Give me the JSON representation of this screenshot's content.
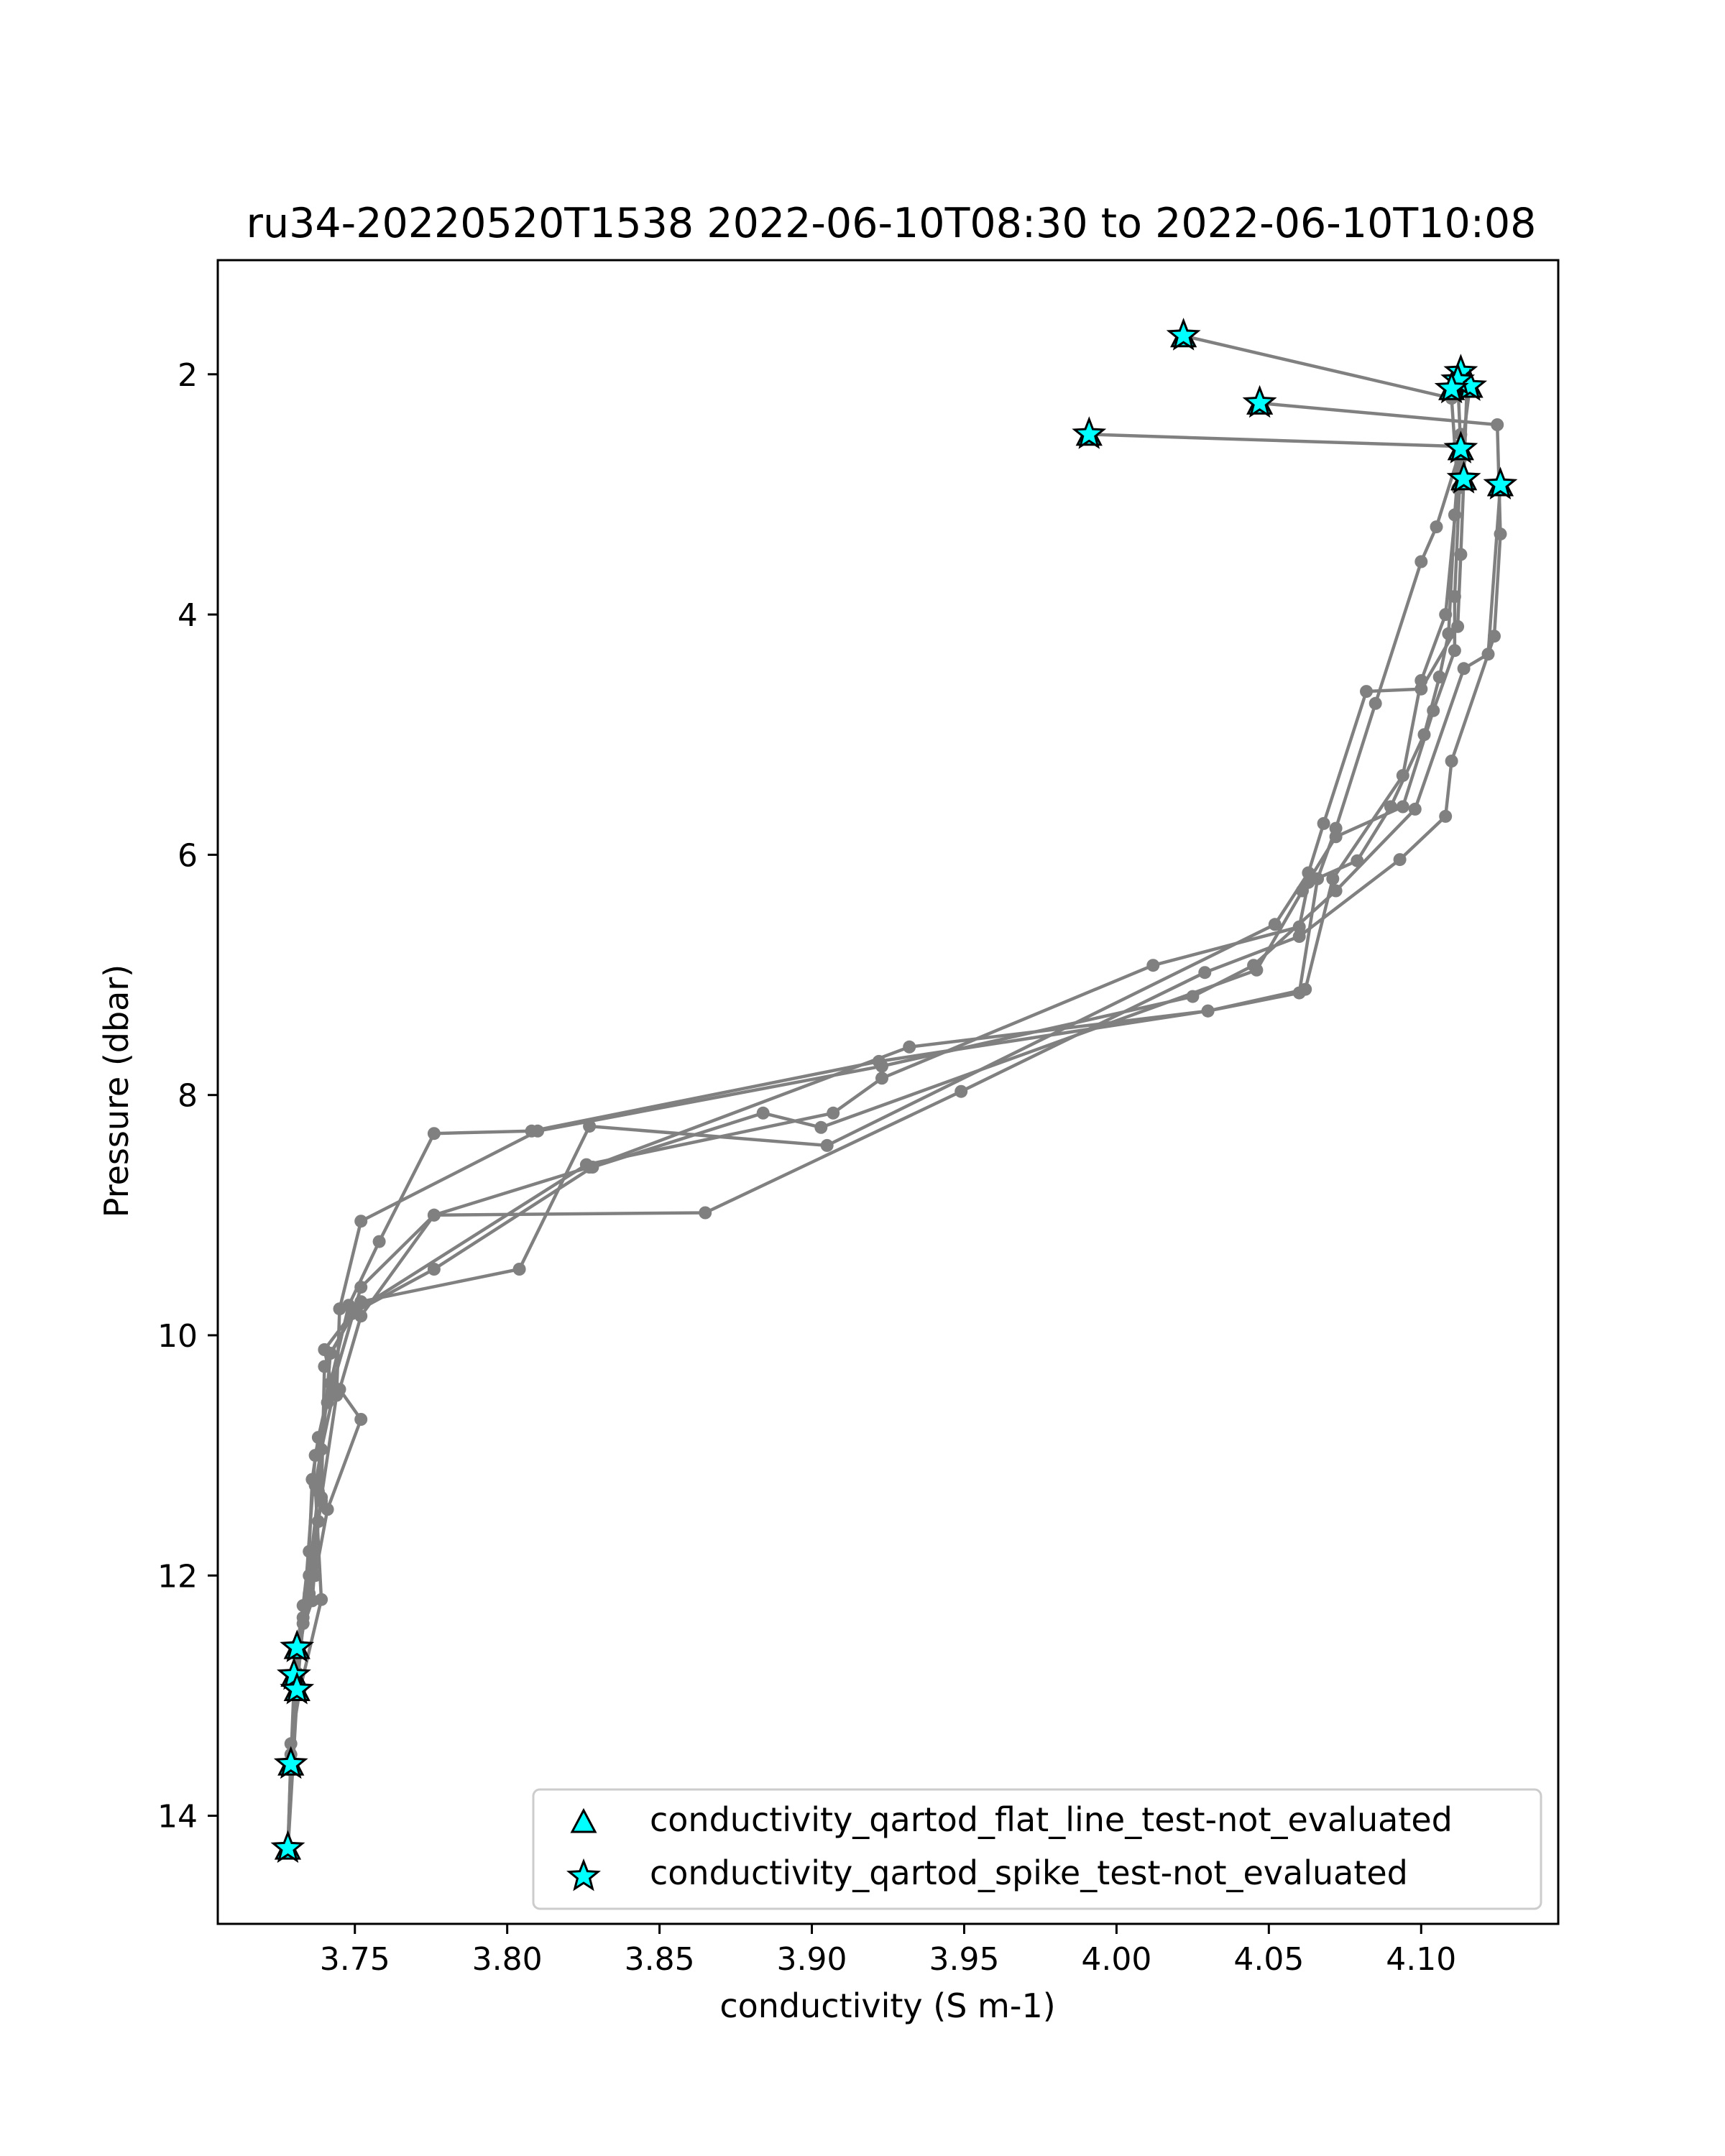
{
  "chart_data": {
    "type": "line",
    "title": "ru34-20220520T1538 2022-06-10T08:30 to 2022-06-10T10:08",
    "xlabel": "conductivity (S m-1)",
    "ylabel": "Pressure (dbar)",
    "xlim": [
      3.705,
      4.145
    ],
    "ylim": [
      14.9,
      1.05
    ],
    "y_inverted": true,
    "grid": false,
    "legend_position": "lower right",
    "x_ticks": [
      3.75,
      3.8,
      3.85,
      3.9,
      3.95,
      4.0,
      4.05,
      4.1
    ],
    "x_tick_labels": [
      "3.75",
      "3.80",
      "3.85",
      "3.90",
      "3.95",
      "4.00",
      "4.05",
      "4.10"
    ],
    "y_ticks": [
      2,
      4,
      6,
      8,
      10,
      12,
      14
    ],
    "y_tick_labels": [
      "2",
      "4",
      "6",
      "8",
      "10",
      "12",
      "14"
    ],
    "line_color": "#808080",
    "marker_fill": "#00ffff",
    "marker_edge": "#000000",
    "profiles": [
      {
        "points": [
          [
            4.022,
            1.68
          ],
          [
            4.11,
            2.2
          ],
          [
            4.112,
            2.95
          ],
          [
            4.108,
            4.0
          ],
          [
            4.1,
            4.55
          ],
          [
            4.094,
            5.34
          ],
          [
            4.071,
            6.2
          ],
          [
            4.062,
            7.12
          ],
          [
            4.03,
            7.3
          ],
          [
            3.922,
            7.72
          ],
          [
            3.808,
            8.3
          ],
          [
            3.776,
            8.32
          ],
          [
            3.758,
            9.22
          ],
          [
            3.748,
            9.75
          ],
          [
            3.742,
            10.4
          ],
          [
            3.738,
            10.85
          ],
          [
            3.736,
            11.2
          ],
          [
            3.735,
            11.8
          ],
          [
            3.733,
            12.25
          ],
          [
            3.731,
            12.6
          ],
          [
            3.73,
            12.92
          ],
          [
            3.729,
            13.55
          ],
          [
            3.728,
            14.27
          ]
        ]
      },
      {
        "points": [
          [
            4.047,
            2.24
          ],
          [
            4.125,
            2.42
          ],
          [
            4.126,
            3.33
          ],
          [
            4.124,
            4.18
          ],
          [
            4.11,
            5.22
          ],
          [
            4.108,
            5.68
          ],
          [
            4.093,
            6.04
          ],
          [
            4.06,
            6.68
          ],
          [
            4.029,
            6.98
          ],
          [
            3.949,
            7.97
          ],
          [
            3.865,
            8.98
          ],
          [
            3.776,
            9.0
          ],
          [
            3.752,
            9.6
          ],
          [
            3.741,
            10.56
          ],
          [
            3.737,
            11.0
          ],
          [
            3.733,
            12.4
          ],
          [
            3.731,
            12.95
          ],
          [
            3.729,
            13.62
          ]
        ]
      },
      {
        "points": [
          [
            3.991,
            2.5
          ],
          [
            4.112,
            2.6
          ],
          [
            4.113,
            2.5
          ],
          [
            4.111,
            3.17
          ],
          [
            4.109,
            4.16
          ],
          [
            4.106,
            4.52
          ],
          [
            4.101,
            5.0
          ],
          [
            4.09,
            5.6
          ],
          [
            4.079,
            6.05
          ],
          [
            4.063,
            6.23
          ],
          [
            4.06,
            6.6
          ],
          [
            4.012,
            6.92
          ],
          [
            3.923,
            7.86
          ],
          [
            3.907,
            8.15
          ],
          [
            3.826,
            8.58
          ],
          [
            3.75,
            9.8
          ],
          [
            3.742,
            10.15
          ],
          [
            3.738,
            11.3
          ],
          [
            3.735,
            12.0
          ],
          [
            3.731,
            12.81
          ]
        ]
      },
      {
        "points": [
          [
            4.113,
            1.98
          ],
          [
            4.116,
            2.1
          ],
          [
            4.113,
            2.7
          ],
          [
            4.111,
            3.85
          ],
          [
            4.111,
            4.3
          ],
          [
            4.104,
            4.8
          ],
          [
            4.094,
            5.6
          ],
          [
            4.072,
            5.85
          ],
          [
            4.061,
            6.3
          ],
          [
            4.046,
            6.96
          ],
          [
            3.903,
            8.27
          ],
          [
            3.884,
            8.15
          ],
          [
            3.828,
            8.6
          ],
          [
            3.776,
            9.45
          ],
          [
            3.749,
            9.82
          ],
          [
            3.74,
            10.26
          ],
          [
            3.739,
            11.38
          ],
          [
            3.738,
            11.55
          ],
          [
            3.736,
            12.21
          ],
          [
            3.731,
            12.58
          ],
          [
            3.729,
            13.57
          ]
        ]
      },
      {
        "points": [
          [
            4.126,
            2.92
          ],
          [
            4.122,
            4.33
          ],
          [
            4.114,
            4.45
          ],
          [
            4.098,
            5.62
          ],
          [
            4.072,
            6.3
          ],
          [
            4.045,
            6.92
          ],
          [
            4.025,
            7.18
          ],
          [
            3.923,
            7.76
          ],
          [
            3.81,
            8.3
          ],
          [
            3.752,
            9.05
          ],
          [
            3.745,
            9.78
          ],
          [
            3.744,
            10.5
          ],
          [
            3.739,
            11.35
          ],
          [
            3.735,
            12.15
          ],
          [
            3.732,
            12.59
          ],
          [
            3.728,
            14.29
          ]
        ]
      },
      {
        "points": [
          [
            4.115,
            2.13
          ],
          [
            4.114,
            2.87
          ],
          [
            4.113,
            3.5
          ],
          [
            4.112,
            4.1
          ],
          [
            4.1,
            4.62
          ],
          [
            4.082,
            4.64
          ],
          [
            4.068,
            5.74
          ],
          [
            4.063,
            6.15
          ],
          [
            4.052,
            6.58
          ],
          [
            3.905,
            8.42
          ],
          [
            3.827,
            8.26
          ],
          [
            3.804,
            9.45
          ],
          [
            3.752,
            9.72
          ],
          [
            3.74,
            10.12
          ],
          [
            3.743,
            10.48
          ],
          [
            3.739,
            10.95
          ],
          [
            3.737,
            11.25
          ],
          [
            3.739,
            12.2
          ],
          [
            3.732,
            12.95
          ],
          [
            3.729,
            13.4
          ]
        ]
      },
      {
        "points": [
          [
            4.112,
            2.05
          ],
          [
            4.113,
            2.62
          ],
          [
            4.105,
            3.27
          ],
          [
            4.1,
            3.56
          ],
          [
            4.085,
            4.74
          ],
          [
            4.072,
            5.78
          ],
          [
            4.066,
            6.2
          ],
          [
            4.06,
            7.15
          ],
          [
            4.03,
            7.3
          ],
          [
            3.932,
            7.6
          ],
          [
            3.827,
            8.6
          ],
          [
            3.776,
            9.0
          ],
          [
            3.752,
            9.84
          ],
          [
            3.745,
            10.45
          ],
          [
            3.752,
            10.7
          ],
          [
            3.741,
            11.45
          ],
          [
            3.737,
            12.0
          ],
          [
            3.733,
            12.35
          ],
          [
            3.731,
            12.83
          ],
          [
            3.729,
            13.49
          ],
          [
            3.728,
            14.31
          ]
        ]
      }
    ],
    "series": [
      {
        "name": "conductivity_qartod_flat_line_test-not_evaluated",
        "marker": "triangle",
        "points": [
          [
            4.022,
            1.68
          ],
          [
            4.047,
            2.24
          ],
          [
            3.991,
            2.5
          ],
          [
            4.113,
            1.98
          ],
          [
            4.116,
            2.1
          ],
          [
            4.112,
            2.05
          ],
          [
            4.11,
            2.12
          ],
          [
            4.113,
            2.62
          ],
          [
            4.114,
            2.87
          ],
          [
            4.126,
            2.92
          ],
          [
            3.731,
            12.6
          ],
          [
            3.73,
            12.83
          ],
          [
            3.731,
            12.95
          ],
          [
            3.729,
            13.57
          ],
          [
            3.728,
            14.27
          ]
        ]
      },
      {
        "name": "conductivity_qartod_spike_test-not_evaluated",
        "marker": "star",
        "points": [
          [
            4.022,
            1.68
          ],
          [
            4.047,
            2.24
          ],
          [
            3.991,
            2.5
          ],
          [
            4.113,
            1.98
          ],
          [
            4.116,
            2.1
          ],
          [
            4.112,
            2.05
          ],
          [
            4.11,
            2.12
          ],
          [
            4.113,
            2.62
          ],
          [
            4.114,
            2.87
          ],
          [
            4.126,
            2.92
          ],
          [
            3.731,
            12.6
          ],
          [
            3.73,
            12.83
          ],
          [
            3.731,
            12.95
          ],
          [
            3.729,
            13.57
          ],
          [
            3.728,
            14.27
          ]
        ]
      }
    ]
  }
}
